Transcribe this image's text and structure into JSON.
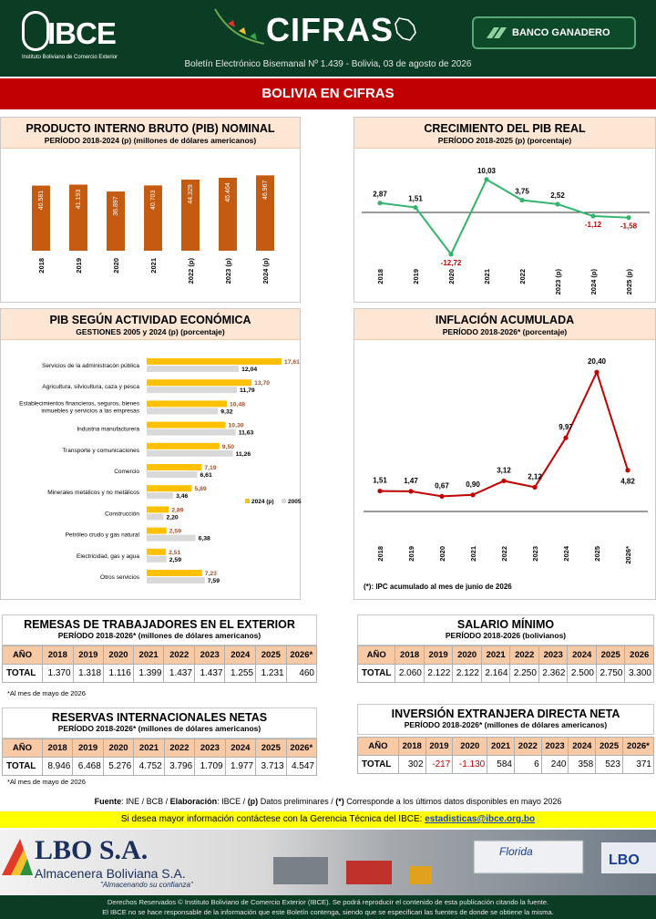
{
  "header": {
    "logo_text": "IBCE",
    "logo_sub": "Instituto Boliviano de Comercio Exterior",
    "title": "CIFRAS",
    "bank": "BANCO GANADERO",
    "bulletin": "Boletín Electrónico Bisemanal Nº 1.439 - Bolivia, 03 de agosto de 2026",
    "section": "BOLIVIA EN CIFRAS"
  },
  "pib_nominal": {
    "title": "PRODUCTO INTERNO BRUTO (PIB) NOMINAL",
    "subtitle": "PERÍODO 2018-2024 (p) (millones de dólares americanos)",
    "chart_data": {
      "type": "bar",
      "categories": [
        "2018",
        "2019",
        "2020",
        "2021",
        "2022 (p)",
        "2023 (p)",
        "2024 (p)"
      ],
      "values": [
        40581,
        41193,
        36897,
        40703,
        44329,
        45464,
        46967
      ],
      "labels": [
        "40.581",
        "41.193",
        "36.897",
        "40.703",
        "44.329",
        "45.464",
        "46.967"
      ],
      "color": "#c55a11"
    }
  },
  "pib_real": {
    "title": "CRECIMIENTO DEL PIB REAL",
    "subtitle": "PERÍODO 2018-2025 (p) (porcentaje)",
    "chart_data": {
      "type": "line",
      "categories": [
        "2018",
        "2019",
        "2020",
        "2021",
        "2022",
        "2023 (p)",
        "2024 (p)",
        "2025 (p)"
      ],
      "values": [
        2.87,
        1.51,
        -12.72,
        10.03,
        3.75,
        2.52,
        -1.12,
        -1.58
      ],
      "labels": [
        "2,87",
        "1,51",
        "-12,72",
        "10,03",
        "3,75",
        "2,52",
        "-1,12",
        "-1,58"
      ],
      "color": "#33b36b"
    }
  },
  "pib_actividad": {
    "title": "PIB SEGÚN ACTIVIDAD ECONÓMICA",
    "subtitle": "GESTIONES 2005 y 2024 (p) (porcentaje)",
    "chart_data": {
      "type": "bar",
      "orientation": "horizontal",
      "categories": [
        "Servicios de la administracón pública",
        "Agricultura, silvicultura, caza y pesca",
        "Establecimientos financieros, seguros, bienes inmuebles y servicios a las empresas",
        "Industria manufacturera",
        "Transporte y comunicaciones",
        "Comercio",
        "Minerales metálicos y no metálicos",
        "Construcción",
        "Petróleo crudo y gas natural",
        "Electricidad, gas y agua",
        "Otros servicios"
      ],
      "series": [
        {
          "name": "2024 (p)",
          "values": [
            17.61,
            13.7,
            10.48,
            10.3,
            9.5,
            7.19,
            5.89,
            2.89,
            2.59,
            2.51,
            7.23
          ],
          "labels": [
            "17,61",
            "13,70",
            "10,48",
            "10,30",
            "9,50",
            "7,19",
            "5,89",
            "2,89",
            "2,59",
            "2,51",
            "7,23"
          ],
          "color": "#ffc000"
        },
        {
          "name": "2005",
          "values": [
            12.04,
            11.79,
            9.32,
            11.63,
            11.26,
            6.61,
            3.46,
            2.2,
            6.38,
            2.59,
            7.59
          ],
          "labels": [
            "12,04",
            "11,79",
            "9,32",
            "11,63",
            "11,26",
            "6,61",
            "3,46",
            "2,20",
            "6,38",
            "2,59",
            "7,59"
          ],
          "color": "#d9d9d9"
        }
      ]
    }
  },
  "inflacion": {
    "title": "INFLACIÓN ACUMULADA",
    "subtitle": "PERÍODO 2018-2026* (porcentaje)",
    "note": "(*): IPC acumulado al mes de junio de 2026",
    "chart_data": {
      "type": "line",
      "categories": [
        "2018",
        "2019",
        "2020",
        "2021",
        "2022",
        "2023",
        "2024",
        "2025",
        "2026*"
      ],
      "values": [
        1.51,
        1.47,
        0.67,
        0.9,
        3.12,
        2.12,
        9.97,
        20.4,
        4.82
      ],
      "labels": [
        "1,51",
        "1,47",
        "0,67",
        "0,90",
        "3,12",
        "2,12",
        "9,97",
        "20,40",
        "4,82"
      ],
      "color": "#c00000"
    }
  },
  "remesas": {
    "title": "REMESAS DE TRABAJADORES EN EL EXTERIOR",
    "subtitle": "PERÍODO 2018-2026* (millones de dólares americanos)",
    "note": "*Al mes de mayo de 2026",
    "headers": [
      "AÑO",
      "2018",
      "2019",
      "2020",
      "2021",
      "2022",
      "2023",
      "2024",
      "2025",
      "2026*"
    ],
    "row": [
      "TOTAL",
      "1.370",
      "1.318",
      "1.116",
      "1.399",
      "1.437",
      "1.437",
      "1.255",
      "1.231",
      "460"
    ]
  },
  "salario": {
    "title": "SALARIO MÍNIMO",
    "subtitle": "PERÍODO 2018-2026 (bolivianos)",
    "headers": [
      "AÑO",
      "2018",
      "2019",
      "2020",
      "2021",
      "2022",
      "2023",
      "2024",
      "2025",
      "2026"
    ],
    "row": [
      "TOTAL",
      "2.060",
      "2.122",
      "2.122",
      "2.164",
      "2.250",
      "2.362",
      "2.500",
      "2.750",
      "3.300"
    ]
  },
  "reservas": {
    "title": "RESERVAS INTERNACIONALES NETAS",
    "subtitle": "PERÍODO 2018-2026* (millones de dólares americanos)",
    "note": "*Al mes de mayo de 2026",
    "headers": [
      "AÑO",
      "2018",
      "2019",
      "2020",
      "2021",
      "2022",
      "2023",
      "2024",
      "2025",
      "2026*"
    ],
    "row": [
      "TOTAL",
      "8.946",
      "6.468",
      "5.276",
      "4.752",
      "3.796",
      "1.709",
      "1.977",
      "3.713",
      "4.547"
    ]
  },
  "ied": {
    "title": "INVERSIÓN EXTRANJERA DIRECTA NETA",
    "subtitle": "PERÍODO 2018-2026* (millones de dólares americanos)",
    "headers": [
      "AÑO",
      "2018",
      "2019",
      "2020",
      "2021",
      "2022",
      "2023",
      "2024",
      "2025",
      "2026*"
    ],
    "row": [
      "TOTAL",
      "302",
      "-217",
      "-1.130",
      "584",
      "6",
      "240",
      "358",
      "523",
      "371"
    ]
  },
  "fuente": {
    "label": "Fuente",
    "text": ": INE / BCB / ",
    "elab_label": "Elaboración",
    "elab": ": IBCE / ",
    "p": "(p)",
    "p_text": " Datos preliminares / ",
    "star": "(*)",
    "star_text": " Corresponde a los últimos datos disponibles en mayo 2026"
  },
  "contact": {
    "text": "Si desea mayor información contáctese con la Gerencia Técnica del IBCE: ",
    "email": "estadisticas@ibce.org.bo"
  },
  "ad": {
    "name": "LBO S.A.",
    "sub": "Almacenera Boliviana S.A.",
    "slogan": "\"Almacenando su confianza\"",
    "sign1": "Florida",
    "sign2": "LBO"
  },
  "footer": {
    "line1": "Derechos Reservados © Instituto Boliviano de Comercio Exterior (IBCE). Se podrá reproducir el contenido de esta publicación citando la fuente.",
    "line2": "El IBCE no se hace responsable de la información que este Boletín contenga, siendo que se especifican las fuentes de donde se obtiene la misma."
  }
}
